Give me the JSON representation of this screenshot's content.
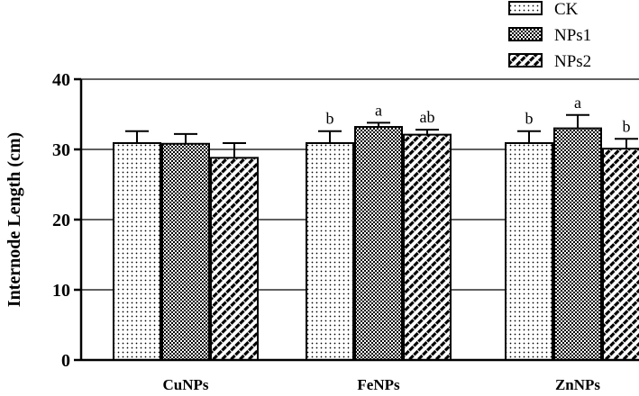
{
  "chart_data": {
    "type": "bar",
    "title": "",
    "xlabel": "",
    "ylabel": "Internode Length (cm)",
    "ylim": [
      0,
      40
    ],
    "yticks": [
      0,
      10,
      20,
      30,
      40
    ],
    "grid": true,
    "legend_position": "top-right",
    "categories": [
      "CuNPs",
      "FeNPs",
      "ZnNPs"
    ],
    "series": [
      {
        "name": "CK",
        "pattern": "dots",
        "values": [
          30.9,
          30.9,
          30.9
        ],
        "errors": [
          1.7,
          1.7,
          1.7
        ],
        "labels": [
          "",
          "b",
          "b"
        ]
      },
      {
        "name": "NPs1",
        "pattern": "checker",
        "values": [
          30.8,
          33.2,
          33.0
        ],
        "errors": [
          1.4,
          0.6,
          1.9
        ],
        "labels": [
          "",
          "a",
          "a"
        ]
      },
      {
        "name": "NPs2",
        "pattern": "diagonal",
        "values": [
          28.8,
          32.1,
          30.1
        ],
        "errors": [
          2.1,
          0.7,
          1.4
        ],
        "labels": [
          "",
          "ab",
          "b"
        ]
      }
    ]
  }
}
